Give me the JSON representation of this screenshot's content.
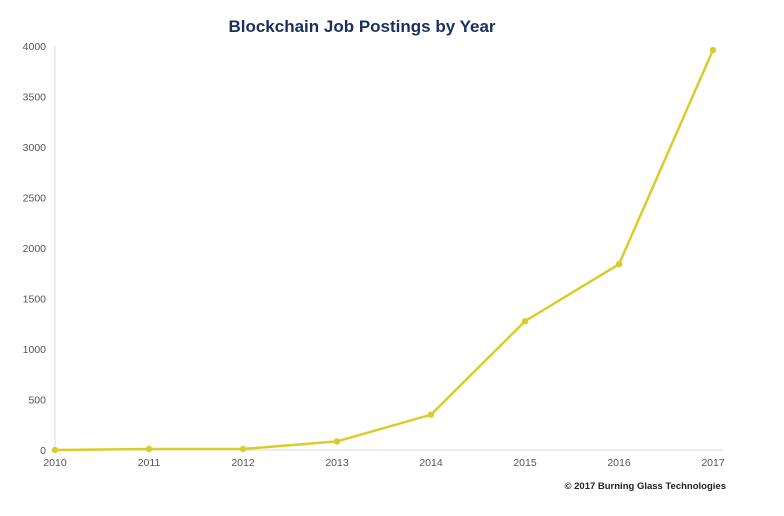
{
  "chart_data": {
    "type": "line",
    "title": "Blockchain Job Postings by Year",
    "xlabel": "",
    "ylabel": "",
    "x": [
      "2010",
      "2011",
      "2012",
      "2013",
      "2014",
      "2015",
      "2016",
      "2017"
    ],
    "series": [
      {
        "values": [
          0,
          10,
          10,
          85,
          350,
          1275,
          1840,
          3960
        ],
        "color": "#d8cd2a"
      }
    ],
    "ylim": [
      0,
      4000
    ],
    "yticks": [
      "0",
      "500",
      "1000",
      "1500",
      "2000",
      "2500",
      "3000",
      "3500",
      "4000"
    ],
    "grid": false,
    "legend": "none",
    "credit": "© 2017 Burning Glass Technologies"
  }
}
